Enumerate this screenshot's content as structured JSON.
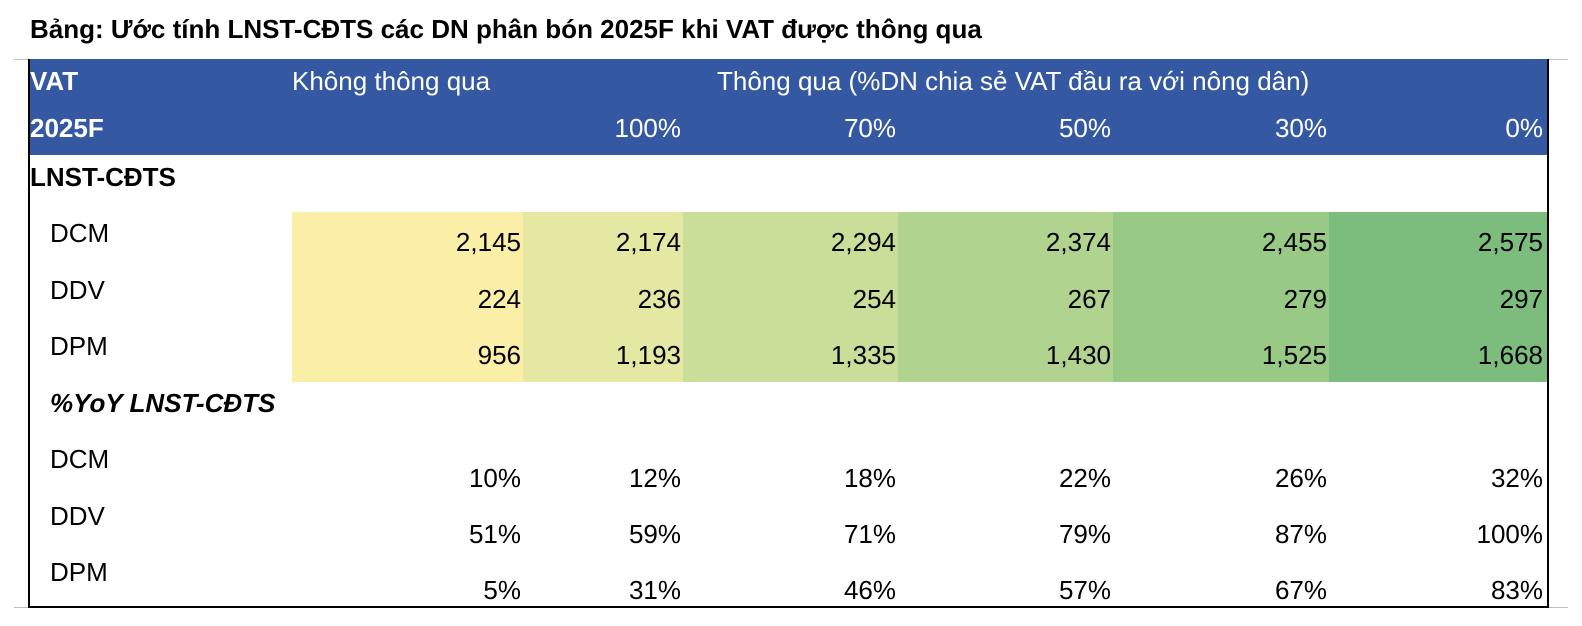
{
  "title": "Bảng: Ước tính LNST-CĐTS các DN phân bón 2025F khi VAT được thông qua",
  "header": {
    "row1_label": "VAT",
    "not_passed": "Không thông qua",
    "passed": "Thông qua (%DN chia sẻ VAT đầu ra với nông dân)",
    "row2_label": "2025F",
    "shares": [
      "100%",
      "70%",
      "50%",
      "30%",
      "0%"
    ]
  },
  "section1": {
    "label": "LNST-CĐTS",
    "rows": [
      {
        "name": "DCM",
        "values": [
          "2,145",
          "2,174",
          "2,294",
          "2,374",
          "2,455",
          "2,575"
        ]
      },
      {
        "name": "DDV",
        "values": [
          "224",
          "236",
          "254",
          "267",
          "279",
          "297"
        ]
      },
      {
        "name": "DPM",
        "values": [
          "956",
          "1,193",
          "1,335",
          "1,430",
          "1,525",
          "1,668"
        ]
      }
    ]
  },
  "section2": {
    "label": "%YoY LNST-CĐTS",
    "rows": [
      {
        "name": "DCM",
        "values": [
          "10%",
          "12%",
          "18%",
          "22%",
          "26%",
          "32%"
        ]
      },
      {
        "name": "DDV",
        "values": [
          "51%",
          "59%",
          "71%",
          "79%",
          "87%",
          "100%"
        ]
      },
      {
        "name": "DPM",
        "values": [
          "5%",
          "31%",
          "46%",
          "57%",
          "67%",
          "83%"
        ]
      }
    ]
  },
  "colors": {
    "header_bg": "#3558a3",
    "heat_scale": [
      "#fbeea6",
      "#e4e8a2",
      "#c9df99",
      "#b0d48f",
      "#98ca86",
      "#7cbd7d"
    ]
  }
}
